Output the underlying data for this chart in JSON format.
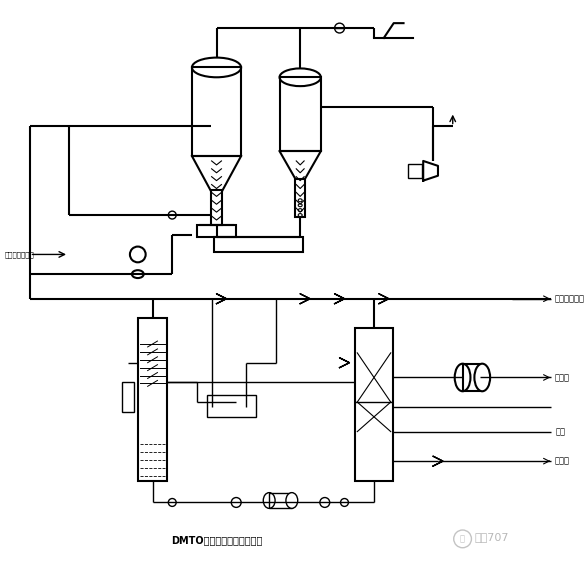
{
  "title": "DMTO装置主要工艺流程简图",
  "label_methanol": "甲醉自装置外来",
  "label_flue": "反应气至火芭",
  "label_steam": "蕊汽",
  "label_water": "洗涤水",
  "label_purified": "净化水",
  "label_watermark": "化工707",
  "bg_color": "#ffffff",
  "line_color": "#000000",
  "figsize": [
    5.88,
    5.64
  ],
  "dpi": 100
}
